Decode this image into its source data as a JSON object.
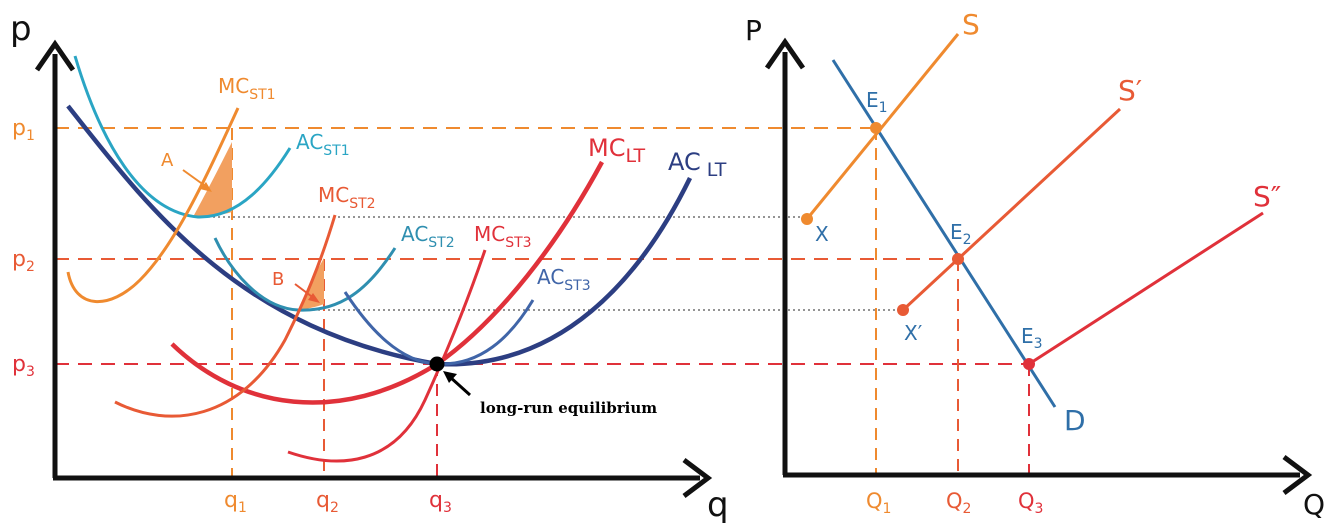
{
  "colors": {
    "axis": "#111111",
    "orange": "#ef8a2f",
    "orange_fill": "#f2a060",
    "orange_red": "#e85a35",
    "red": "#e0313a",
    "teal": "#2aa5c4",
    "teal_dark": "#2f8fb0",
    "steel": "#4065a8",
    "navy": "#2c3e82",
    "blue": "#2f6fa8",
    "dotted": "#555555"
  },
  "left_panel": {
    "y_axis_label": "p",
    "x_axis_label": "q",
    "price_labels": [
      {
        "main": "p",
        "sub": "1"
      },
      {
        "main": "p",
        "sub": "2"
      },
      {
        "main": "p",
        "sub": "3"
      }
    ],
    "quantity_labels": [
      {
        "main": "q",
        "sub": "1"
      },
      {
        "main": "q",
        "sub": "2"
      },
      {
        "main": "q",
        "sub": "3"
      }
    ],
    "curve_labels": {
      "mc_st1": {
        "main": "MC",
        "sub": "ST1"
      },
      "ac_st1": {
        "main": "AC",
        "sub": "ST1"
      },
      "mc_st2": {
        "main": "MC",
        "sub": "ST2"
      },
      "ac_st2": {
        "main": "AC",
        "sub": "ST2"
      },
      "mc_st3": {
        "main": "MC",
        "sub": "ST3"
      },
      "ac_st3": {
        "main": "AC",
        "sub": "ST3"
      },
      "mc_lt": {
        "main": "MC",
        "sub": "LT"
      },
      "ac_lt": {
        "main": "AC",
        "sub": "LT"
      }
    },
    "area_labels": {
      "a": "A",
      "b": "B"
    },
    "equilibrium_label": "long-run equilibrium"
  },
  "right_panel": {
    "y_axis_label": "P",
    "x_axis_label": "Q",
    "quantity_labels": [
      {
        "main": "Q",
        "sub": "1"
      },
      {
        "main": "Q",
        "sub": "2"
      },
      {
        "main": "Q",
        "sub": "3"
      }
    ],
    "points": {
      "e1": {
        "main": "E",
        "sub": "1"
      },
      "e2": {
        "main": "E",
        "sub": "2"
      },
      "e3": {
        "main": "E",
        "sub": "3"
      },
      "x": "X",
      "x_prime": "X′"
    },
    "curves": {
      "s": "S",
      "s_prime": "S′",
      "s_double_prime": "S″",
      "d": "D"
    }
  }
}
